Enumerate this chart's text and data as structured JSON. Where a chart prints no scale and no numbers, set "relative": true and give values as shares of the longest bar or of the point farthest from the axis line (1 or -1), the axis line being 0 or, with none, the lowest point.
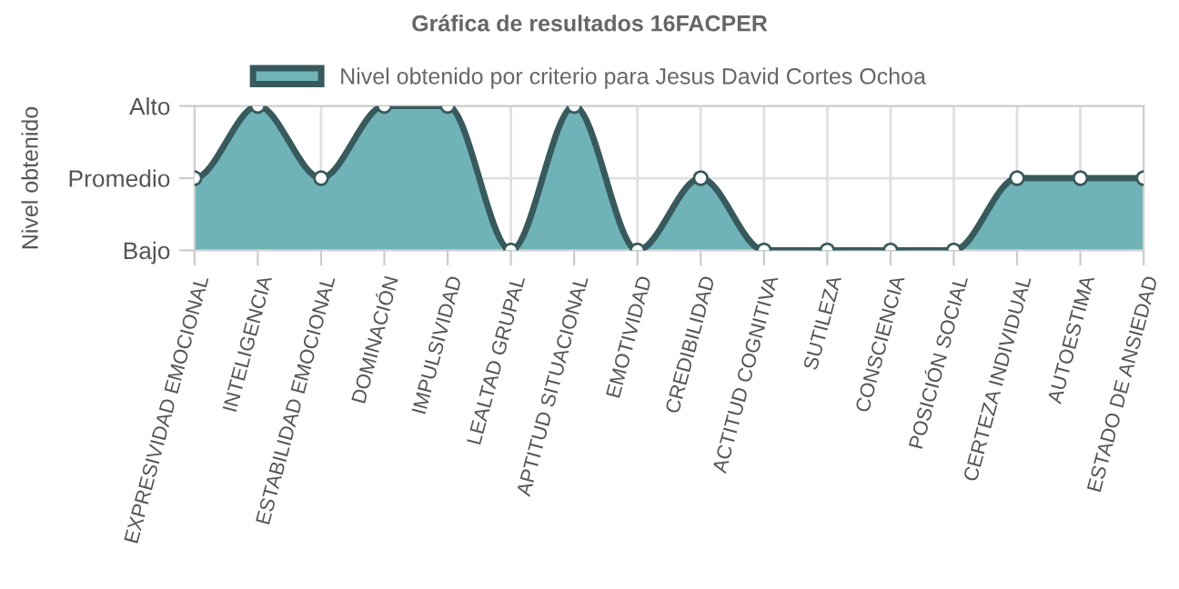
{
  "chart_data": {
    "type": "area",
    "title": "Gráfica de resultados 16FACPER",
    "ylabel": "Nivel obtenido",
    "categories": [
      "EXPRESIVIDAD EMOCIONAL",
      "INTELIGENCIA",
      "ESTABILIDAD EMOCIONAL",
      "DOMINACIÓN",
      "IMPULSIVIDAD",
      "LEALTAD GRUPAL",
      "APTITUD SITUACIONAL",
      "EMOTIVIDAD",
      "CREDIBILIDAD",
      "ACTITUD COGNITIVA",
      "SUTILEZA",
      "CONSCIENCIA",
      "POSICIÓN SOCIAL",
      "CERTEZA INDIVIDUAL",
      "AUTOESTIMA",
      "ESTADO DE ANSIEDAD"
    ],
    "y_categories": [
      "Alto",
      "Promedio",
      "Bajo"
    ],
    "relative": true,
    "series": [
      {
        "name": "Nivel obtenido por criterio para Jesus David Cortes Ochoa",
        "color": "#6fb3b8",
        "values": [
          0.5,
          1,
          0.5,
          1,
          1,
          0,
          1,
          0,
          0.5,
          0,
          0,
          0,
          0,
          0.5,
          0.5,
          0.5
        ]
      }
    ],
    "grid": true,
    "legend": "top",
    "marker": "circle",
    "line_style": "solid"
  }
}
